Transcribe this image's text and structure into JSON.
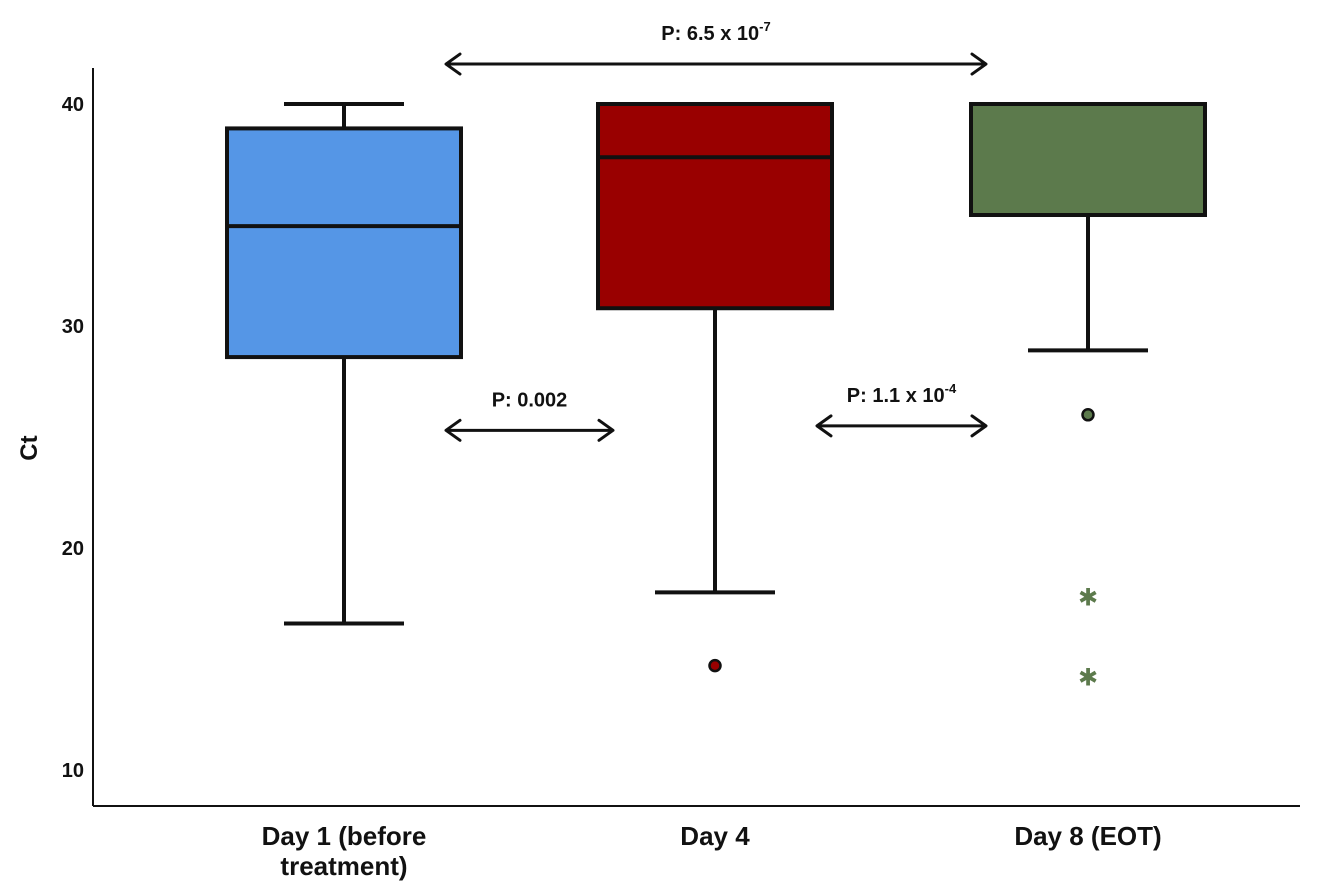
{
  "chart_data": {
    "type": "box",
    "ylabel": "Ct",
    "ylim": [
      8,
      42
    ],
    "yticks": [
      10,
      20,
      30,
      40
    ],
    "grid": false,
    "categories": [
      [
        "Day 1 (before",
        "treatment)"
      ],
      [
        "Day 4"
      ],
      [
        "Day 8 (EOT)"
      ]
    ],
    "boxes": [
      {
        "color": "#5596E6",
        "whisker_low": 16.6,
        "q1": 28.6,
        "median": 34.5,
        "q3": 38.9,
        "whisker_high": 40,
        "outliers": [],
        "extremes": []
      },
      {
        "color": "#990000",
        "whisker_low": 18.0,
        "q1": 30.8,
        "median": 37.6,
        "q3": 40,
        "whisker_high": 40,
        "outliers": [
          14.7
        ],
        "extremes": []
      },
      {
        "color": "#5C7A4C",
        "whisker_low": 28.9,
        "q1": 35.0,
        "median": 40,
        "q3": 40,
        "whisker_high": 40,
        "outliers": [
          26.0
        ],
        "extremes": [
          17.9,
          14.3
        ]
      }
    ],
    "annotations": [
      {
        "from": 0,
        "to": 2,
        "y": 41.8,
        "text": "P: 6.5 x 10",
        "sup": "-7"
      },
      {
        "from": 0,
        "to": 1,
        "y": 25.3,
        "text": "P: 0.002",
        "sup": ""
      },
      {
        "from": 1,
        "to": 2,
        "y": 25.5,
        "text": "P: 1.1 x 10",
        "sup": "-4"
      }
    ]
  }
}
